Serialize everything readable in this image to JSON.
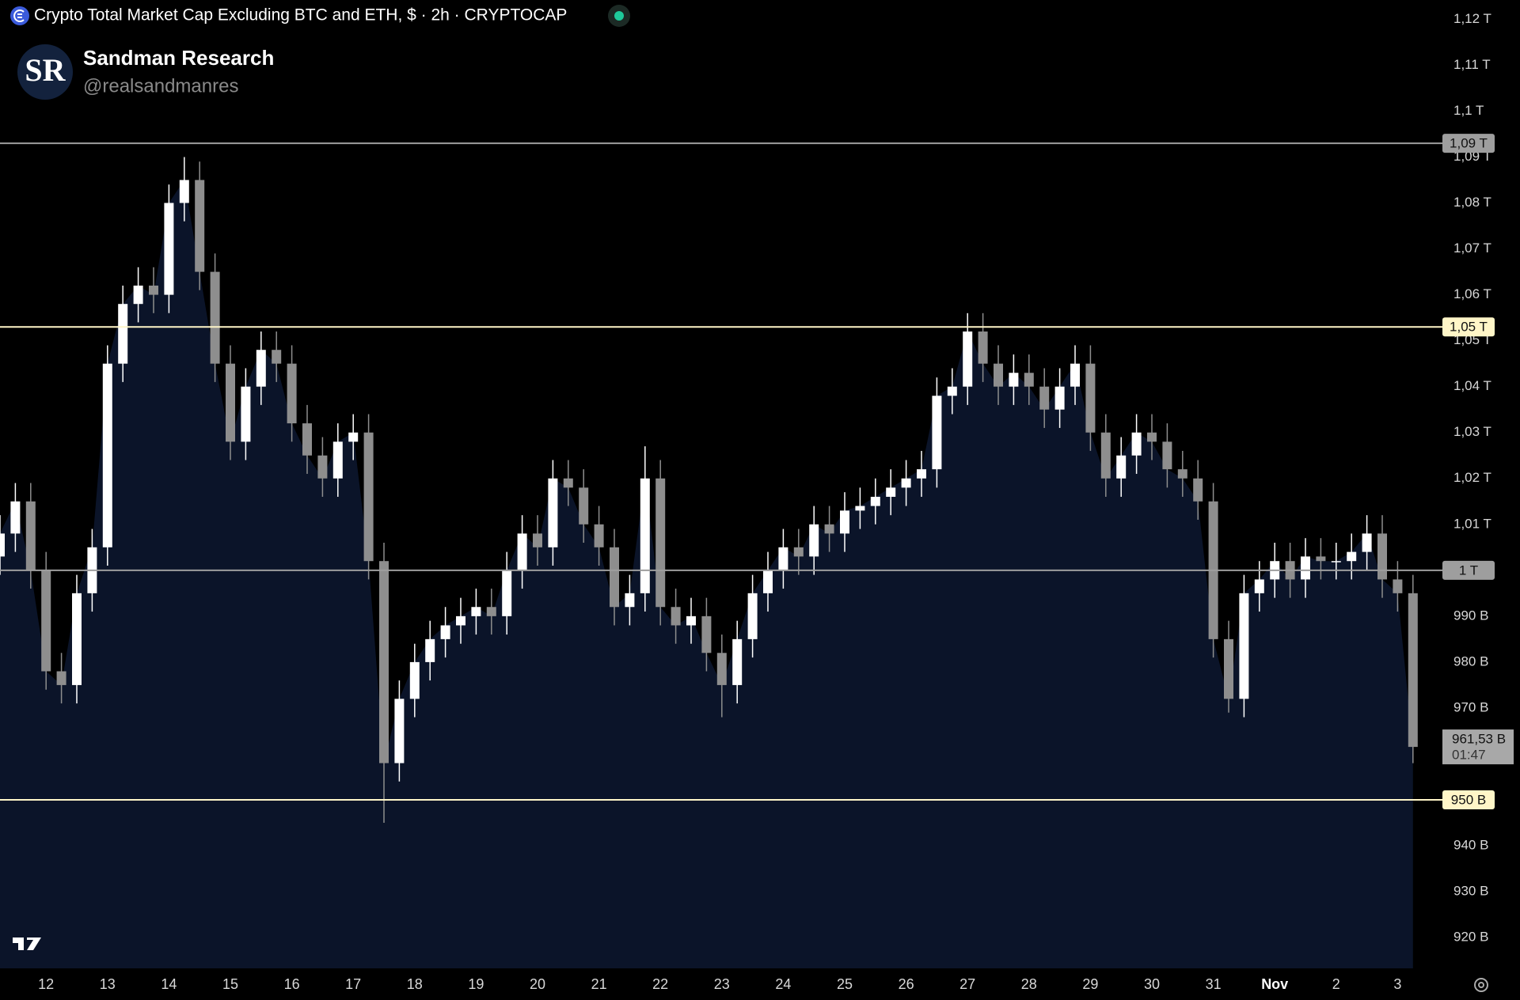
{
  "header": {
    "title": "Crypto Total Market Cap Excluding BTC and ETH, $ · 2h · CRYPTOCAP",
    "logo_text": "SR",
    "author": "Sandman Research",
    "handle": "@realsandmanres"
  },
  "chart_data": {
    "type": "candlestick",
    "categories": [
      null,
      null,
      null,
      "12",
      null,
      null,
      null,
      "13",
      null,
      null,
      null,
      "14",
      null,
      null,
      null,
      "15",
      null,
      null,
      null,
      "16",
      null,
      null,
      null,
      "17",
      null,
      null,
      null,
      "18",
      null,
      null,
      null,
      "19",
      null,
      null,
      null,
      "20",
      null,
      null,
      null,
      "21",
      null,
      null,
      null,
      "22",
      null,
      null,
      null,
      "23",
      null,
      null,
      null,
      "24",
      null,
      null,
      null,
      "25",
      null,
      null,
      null,
      "26",
      null,
      null,
      null,
      "27",
      null,
      null,
      null,
      "28",
      null,
      null,
      null,
      "29",
      null,
      null,
      null,
      "30",
      null,
      null,
      null,
      "31",
      null,
      null,
      null,
      "Nov",
      null,
      null,
      null,
      "2",
      null,
      null,
      null,
      "3",
      null
    ],
    "open": [
      1003,
      1008,
      1015,
      1000,
      978,
      975,
      995,
      1005,
      1045,
      1058,
      1062,
      1060,
      1080,
      1085,
      1065,
      1045,
      1028,
      1040,
      1048,
      1045,
      1032,
      1025,
      1020,
      1028,
      1030,
      1002,
      958,
      972,
      980,
      985,
      988,
      990,
      992,
      990,
      1000,
      1008,
      1005,
      1020,
      1018,
      1010,
      1005,
      992,
      995,
      1020,
      992,
      988,
      990,
      982,
      975,
      985,
      995,
      1000,
      1005,
      1003,
      1010,
      1008,
      1013,
      1014,
      1016,
      1018,
      1020,
      1022,
      1038,
      1040,
      1052,
      1045,
      1040,
      1043,
      1040,
      1035,
      1040,
      1045,
      1030,
      1020,
      1025,
      1030,
      1028,
      1022,
      1020,
      1015,
      985,
      972,
      995,
      998,
      1002,
      998,
      1003,
      1002,
      1002,
      1004,
      1008,
      998,
      995
    ],
    "high": [
      1012,
      1019,
      1019,
      1004,
      982,
      999,
      1009,
      1049,
      1062,
      1066,
      1066,
      1084,
      1090,
      1089,
      1069,
      1049,
      1044,
      1052,
      1052,
      1049,
      1036,
      1029,
      1032,
      1034,
      1034,
      1006,
      976,
      984,
      989,
      992,
      994,
      996,
      996,
      1004,
      1012,
      1012,
      1024,
      1024,
      1022,
      1014,
      1009,
      999,
      1027,
      1024,
      996,
      994,
      994,
      986,
      989,
      999,
      1004,
      1009,
      1009,
      1014,
      1014,
      1017,
      1018,
      1020,
      1022,
      1024,
      1026,
      1042,
      1044,
      1056,
      1056,
      1049,
      1047,
      1047,
      1044,
      1044,
      1049,
      1049,
      1034,
      1029,
      1034,
      1034,
      1032,
      1026,
      1024,
      1019,
      989,
      999,
      1002,
      1006,
      1006,
      1007,
      1007,
      1006,
      1008,
      1012,
      1012,
      1002,
      999
    ],
    "low": [
      999,
      1004,
      996,
      974,
      971,
      971,
      991,
      1001,
      1041,
      1054,
      1056,
      1056,
      1076,
      1061,
      1041,
      1024,
      1024,
      1036,
      1041,
      1028,
      1021,
      1016,
      1016,
      1024,
      998,
      945,
      954,
      968,
      976,
      981,
      984,
      986,
      986,
      986,
      996,
      1001,
      1001,
      1014,
      1006,
      1001,
      988,
      988,
      991,
      988,
      984,
      984,
      978,
      968,
      971,
      981,
      991,
      996,
      999,
      999,
      1004,
      1004,
      1009,
      1010,
      1012,
      1014,
      1016,
      1018,
      1034,
      1036,
      1041,
      1036,
      1036,
      1036,
      1031,
      1031,
      1036,
      1026,
      1016,
      1016,
      1021,
      1024,
      1018,
      1016,
      1011,
      981,
      969,
      968,
      991,
      994,
      994,
      994,
      998,
      998,
      998,
      1000,
      994,
      991,
      958
    ],
    "close": [
      1008,
      1015,
      1000,
      978,
      975,
      995,
      1005,
      1045,
      1058,
      1062,
      1060,
      1080,
      1085,
      1065,
      1045,
      1028,
      1040,
      1048,
      1045,
      1032,
      1025,
      1020,
      1028,
      1030,
      1002,
      958,
      972,
      980,
      985,
      988,
      990,
      992,
      990,
      1000,
      1008,
      1005,
      1020,
      1018,
      1010,
      1005,
      992,
      995,
      1020,
      992,
      988,
      990,
      982,
      975,
      985,
      995,
      1000,
      1005,
      1003,
      1010,
      1008,
      1013,
      1014,
      1016,
      1018,
      1020,
      1022,
      1038,
      1040,
      1052,
      1045,
      1040,
      1043,
      1040,
      1035,
      1040,
      1045,
      1030,
      1020,
      1025,
      1030,
      1028,
      1022,
      1020,
      1015,
      985,
      972,
      995,
      998,
      1002,
      998,
      1003,
      1002,
      1002,
      1004,
      1008,
      998,
      995,
      961.53
    ],
    "up_color": "#ffffff",
    "down_color": "#8e8e8e",
    "area_color": "#0b1429",
    "ylim": [
      913.3,
      1124.2
    ],
    "yticks": [
      {
        "value": 1120,
        "label": "1,12 T"
      },
      {
        "value": 1110,
        "label": "1,11 T"
      },
      {
        "value": 1100,
        "label": "1,1 T"
      },
      {
        "value": 1090,
        "label": "1,09 T"
      },
      {
        "value": 1080,
        "label": "1,08 T"
      },
      {
        "value": 1070,
        "label": "1,07 T"
      },
      {
        "value": 1060,
        "label": "1,06 T"
      },
      {
        "value": 1050,
        "label": "1,05 T"
      },
      {
        "value": 1040,
        "label": "1,04 T"
      },
      {
        "value": 1030,
        "label": "1,03 T"
      },
      {
        "value": 1020,
        "label": "1,02 T"
      },
      {
        "value": 1010,
        "label": "1,01 T"
      },
      {
        "value": 990,
        "label": "990 B"
      },
      {
        "value": 980,
        "label": "980 B"
      },
      {
        "value": 970,
        "label": "970 B"
      },
      {
        "value": 940,
        "label": "940 B"
      },
      {
        "value": 930,
        "label": "930 B"
      },
      {
        "value": 920,
        "label": "920 B"
      }
    ],
    "levels": [
      {
        "value": 1093,
        "label": "1,09 T",
        "color": "#9e9e9e"
      },
      {
        "value": 1053,
        "label": "1,05 T",
        "color": "#fff6c8"
      },
      {
        "value": 1000,
        "label": "1 T",
        "color": "#9e9e9e"
      },
      {
        "value": 950,
        "label": "950 B",
        "color": "#fff6c8"
      }
    ],
    "last_price": {
      "value": 961.53,
      "label": "961,53 B",
      "countdown": "01:47"
    },
    "grid": false
  }
}
